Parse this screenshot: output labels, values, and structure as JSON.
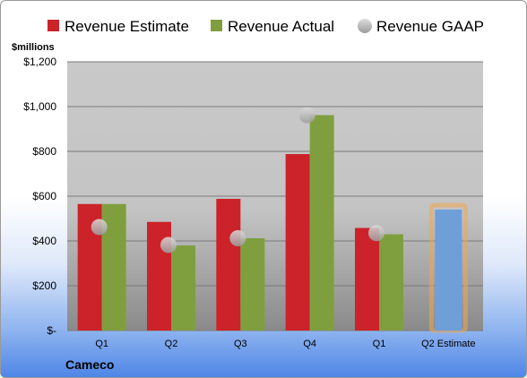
{
  "chart_data": {
    "type": "bar",
    "title": "",
    "ylabel": "$millions",
    "xlabel": "",
    "company": "Cameco",
    "categories": [
      "Q1",
      "Q2",
      "Q3",
      "Q4",
      "Q1",
      "Q2 Estimate"
    ],
    "ylim": [
      0,
      1200
    ],
    "yticks": [
      0,
      200,
      400,
      600,
      800,
      1000,
      1200
    ],
    "ytick_labels": [
      "$-",
      "$200",
      "$400",
      "$600",
      "$800",
      "$1,000",
      "$1,200"
    ],
    "grid": true,
    "legend_position": "top",
    "series": [
      {
        "name": "Revenue Estimate",
        "color": "#cc2229",
        "values": [
          565,
          485,
          588,
          788,
          458,
          null
        ]
      },
      {
        "name": "Revenue Actual",
        "color": "#7f9f3f",
        "values": [
          565,
          380,
          412,
          962,
          430,
          null
        ]
      },
      {
        "name": "Revenue GAAP",
        "color": "#bdbdbd",
        "type": "scatter",
        "values": [
          462,
          382,
          412,
          962,
          435,
          null
        ]
      }
    ],
    "projection": {
      "category": "Q2 Estimate",
      "value": 540,
      "color": "#6f9fd8",
      "highlight": "#f0a850"
    }
  }
}
